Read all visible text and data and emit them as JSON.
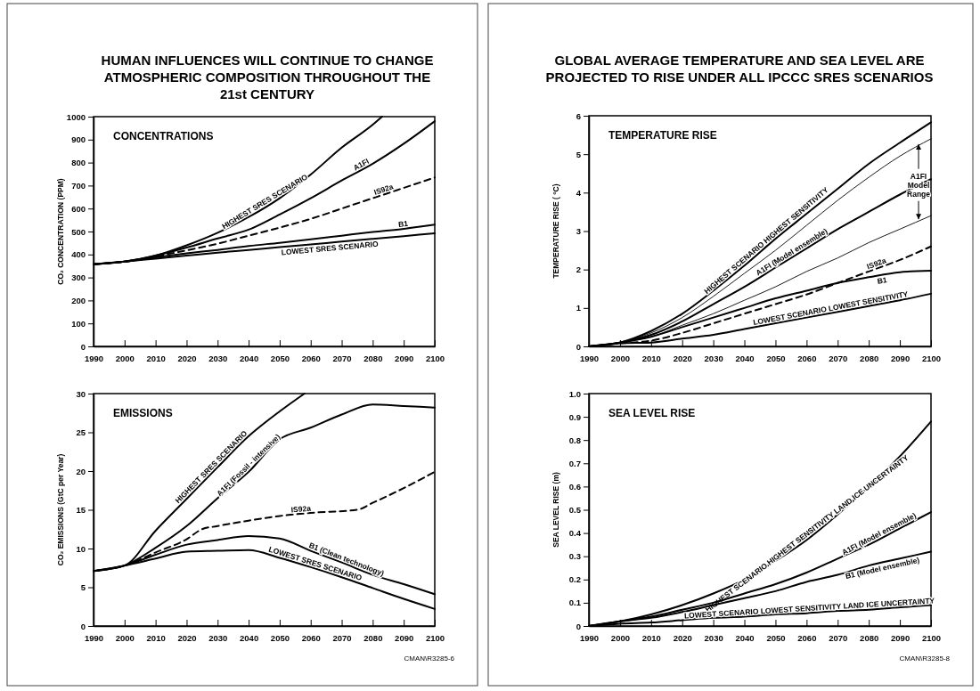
{
  "chart_data": [
    {
      "type": "line",
      "title": "HUMAN INFLUENCES WILL CONTINUE TO CHANGE ATMOSPHERIC COMPOSITION THROUGHOUT THE 21st CENTURY",
      "subtitle": "CONCENTRATIONS",
      "ylabel": "CO₂ CONCENTRATION (PPM)",
      "x": [
        1990,
        2000,
        2010,
        2020,
        2030,
        2040,
        2050,
        2060,
        2070,
        2080,
        2090,
        2100
      ],
      "xlim": [
        1990,
        2100
      ],
      "xticks": [
        1990,
        2000,
        2010,
        2020,
        2030,
        2040,
        2050,
        2060,
        2070,
        2080,
        2090,
        2100
      ],
      "ylim": [
        0,
        1000
      ],
      "yticks": [
        0,
        100,
        200,
        300,
        400,
        500,
        600,
        700,
        800,
        900,
        1000
      ],
      "series": [
        {
          "name": "HIGHEST   SRES   SCENARIO",
          "color": "#000000",
          "x": [
            1990,
            2000,
            2010,
            2020,
            2030,
            2040,
            2050,
            2060,
            2070,
            2080,
            2083
          ],
          "values": [
            358,
            369,
            395,
            440,
            495,
            563,
            645,
            748,
            865,
            965,
            1000
          ]
        },
        {
          "name": "A1FI",
          "color": "#000000",
          "values": [
            358,
            369,
            395,
            430,
            470,
            508,
            574,
            645,
            722,
            795,
            882,
            980
          ]
        },
        {
          "name": "IS92a",
          "color": "#000000",
          "line_style": "dashed",
          "values": [
            358,
            369,
            392,
            418,
            447,
            482,
            517,
            555,
            600,
            645,
            690,
            735
          ]
        },
        {
          "name": "B1",
          "color": "#000000",
          "values": [
            358,
            369,
            388,
            405,
            420,
            437,
            451,
            466,
            482,
            498,
            512,
            530
          ]
        },
        {
          "name": "LOWEST SRES SCENARIO",
          "color": "#000000",
          "values": [
            358,
            369,
            382,
            395,
            408,
            420,
            432,
            444,
            456,
            468,
            480,
            492
          ]
        }
      ]
    },
    {
      "type": "line",
      "title": "EMISSIONS",
      "ylabel": "CO₂ EMISSIONS (GtC per Year)",
      "x": [
        1990,
        2000,
        2010,
        2020,
        2030,
        2040,
        2050,
        2060,
        2070,
        2080,
        2090,
        2100
      ],
      "xlim": [
        1990,
        2100
      ],
      "xticks": [
        1990,
        2000,
        2010,
        2020,
        2030,
        2040,
        2050,
        2060,
        2070,
        2080,
        2090,
        2100
      ],
      "ylim": [
        0,
        30
      ],
      "yticks": [
        0,
        5,
        10,
        15,
        20,
        25,
        30
      ],
      "annotations": [
        "CMAN\\R3285-6"
      ],
      "series": [
        {
          "name": "HIGHEST SRES SCENARIO",
          "color": "#000000",
          "x": [
            1990,
            2000,
            2010,
            2020,
            2030,
            2040,
            2050,
            2058
          ],
          "values": [
            7.1,
            7.8,
            12.3,
            16.4,
            20.5,
            24.5,
            27.7,
            30
          ]
        },
        {
          "name": "A1FI (Fossil - intensive)",
          "color": "#000000",
          "values": [
            7.1,
            7.8,
            10.1,
            12.9,
            16.5,
            19.9,
            24.1,
            25.6,
            27.3,
            28.6,
            28.4,
            28.2
          ]
        },
        {
          "name": "IS92a",
          "color": "#000000",
          "line_style": "dashed",
          "x": [
            1990,
            2000,
            2010,
            2020,
            2025,
            2030,
            2040,
            2050,
            2060,
            2075,
            2080,
            2090,
            2100
          ],
          "values": [
            7.1,
            7.8,
            9.5,
            11.2,
            12.5,
            12.9,
            13.6,
            14.2,
            14.6,
            15.0,
            15.9,
            17.8,
            19.9
          ]
        },
        {
          "name": "B1 (Clean technology)",
          "color": "#000000",
          "values": [
            7.1,
            7.8,
            9.2,
            10.5,
            11.1,
            11.6,
            11.3,
            9.7,
            8.2,
            6.6,
            5.4,
            4.1
          ]
        },
        {
          "name": "LOWEST SRES SCENARIO",
          "color": "#000000",
          "values": [
            7.1,
            7.8,
            8.7,
            9.6,
            9.7,
            9.8,
            8.8,
            7.6,
            6.3,
            4.9,
            3.5,
            2.2
          ]
        }
      ]
    },
    {
      "type": "line",
      "title": "GLOBAL AVERAGE TEMPERATURE AND SEA LEVEL ARE PROJECTED TO RISE UNDER ALL IPCCC SRES SCENARIOS",
      "subtitle": "TEMPERATURE RISE",
      "ylabel": "TEMPERATURE RISE ( °C)",
      "x": [
        1990,
        2000,
        2010,
        2020,
        2030,
        2040,
        2050,
        2060,
        2070,
        2080,
        2090,
        2100
      ],
      "xlim": [
        1990,
        2100
      ],
      "xticks": [
        1990,
        2000,
        2010,
        2020,
        2030,
        2040,
        2050,
        2060,
        2070,
        2080,
        2090,
        2100
      ],
      "ylim": [
        0,
        6
      ],
      "yticks": [
        0,
        1,
        2,
        3,
        4,
        5,
        6
      ],
      "annotations": [
        {
          "text": "A1FI Model Range",
          "x": 2096,
          "y": 4.2
        }
      ],
      "series": [
        {
          "name": "HIGHEST SCENARIO   HIGHEST SENSITIVITY",
          "color": "#000000",
          "values": [
            0,
            0.1,
            0.4,
            0.85,
            1.45,
            2.1,
            2.8,
            3.45,
            4.1,
            4.75,
            5.3,
            5.83
          ]
        },
        {
          "color": "#000000",
          "values": [
            0,
            0.1,
            0.35,
            0.75,
            1.3,
            1.9,
            2.5,
            3.15,
            3.8,
            4.4,
            4.95,
            5.4
          ]
        },
        {
          "name": "A1FI (Model ensemble)",
          "color": "#000000",
          "values": [
            0,
            0.1,
            0.3,
            0.65,
            1.1,
            1.55,
            2.05,
            2.55,
            3.05,
            3.5,
            3.95,
            4.35
          ]
        },
        {
          "color": "#000000",
          "values": [
            0,
            0.1,
            0.25,
            0.55,
            0.85,
            1.2,
            1.55,
            1.95,
            2.3,
            2.7,
            3.05,
            3.4
          ]
        },
        {
          "name": "IS92a",
          "color": "#000000",
          "line_style": "dashed",
          "values": [
            0,
            0.08,
            0.15,
            0.35,
            0.6,
            0.85,
            1.1,
            1.35,
            1.65,
            1.95,
            2.25,
            2.6
          ]
        },
        {
          "name": "B1",
          "color": "#000000",
          "values": [
            0,
            0.1,
            0.25,
            0.5,
            0.75,
            1.0,
            1.25,
            1.45,
            1.65,
            1.8,
            1.93,
            1.97
          ]
        },
        {
          "name": "LOWEST SCENARIO   LOWEST SENSITIVITY",
          "color": "#000000",
          "values": [
            0,
            0.08,
            0.1,
            0.2,
            0.3,
            0.45,
            0.6,
            0.75,
            0.9,
            1.05,
            1.2,
            1.37
          ]
        }
      ]
    },
    {
      "type": "line",
      "title": "SEA LEVEL RISE",
      "ylabel": "SEA LEVEL RISE (m)",
      "x": [
        1990,
        2000,
        2010,
        2020,
        2030,
        2040,
        2050,
        2060,
        2070,
        2080,
        2090,
        2100
      ],
      "xlim": [
        1990,
        2100
      ],
      "xticks": [
        1990,
        2000,
        2010,
        2020,
        2030,
        2040,
        2050,
        2060,
        2070,
        2080,
        2090,
        2100
      ],
      "ylim": [
        0,
        1.0
      ],
      "yticks": [
        0,
        0.1,
        0.2,
        0.3,
        0.4,
        0.5,
        0.6,
        0.7,
        0.8,
        0.9,
        {
          "value": 1.0,
          "label": "1.0"
        }
      ],
      "annotations": [
        "CMAN\\R3285-8"
      ],
      "series": [
        {
          "name": "HIGHEST SCENARIO   HIGHEST SENSITIVITY   LAND ICE UNCERTAINTY",
          "color": "#000000",
          "values": [
            0,
            0.02,
            0.05,
            0.09,
            0.14,
            0.2,
            0.28,
            0.37,
            0.48,
            0.6,
            0.73,
            0.88
          ]
        },
        {
          "name": "A1FI (Model ensemble)",
          "color": "#000000",
          "values": [
            0,
            0.02,
            0.04,
            0.07,
            0.1,
            0.14,
            0.18,
            0.23,
            0.29,
            0.35,
            0.42,
            0.49
          ]
        },
        {
          "name": "B1 (Model ensemble)",
          "color": "#000000",
          "values": [
            0,
            0.02,
            0.035,
            0.06,
            0.09,
            0.12,
            0.15,
            0.19,
            0.22,
            0.26,
            0.29,
            0.32
          ]
        },
        {
          "name": "LOWEST SCENARIO   LOWEST SENSITIVITY   LAND ICE UNCERTAINTY",
          "color": "#000000",
          "values": [
            0,
            0.01,
            0.015,
            0.025,
            0.035,
            0.04,
            0.05,
            0.055,
            0.065,
            0.07,
            0.08,
            0.09
          ]
        }
      ]
    }
  ]
}
